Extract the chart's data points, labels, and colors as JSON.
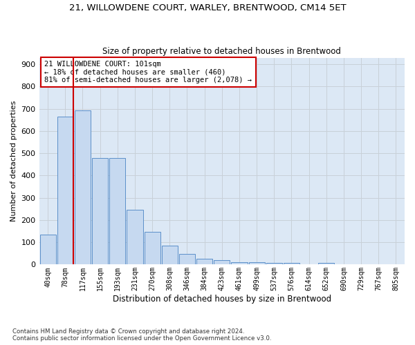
{
  "title": "21, WILLOWDENE COURT, WARLEY, BRENTWOOD, CM14 5ET",
  "subtitle": "Size of property relative to detached houses in Brentwood",
  "xlabel": "Distribution of detached houses by size in Brentwood",
  "ylabel": "Number of detached properties",
  "categories": [
    "40sqm",
    "78sqm",
    "117sqm",
    "155sqm",
    "193sqm",
    "231sqm",
    "270sqm",
    "308sqm",
    "346sqm",
    "384sqm",
    "423sqm",
    "461sqm",
    "499sqm",
    "537sqm",
    "576sqm",
    "614sqm",
    "652sqm",
    "690sqm",
    "729sqm",
    "767sqm",
    "805sqm"
  ],
  "values": [
    135,
    665,
    693,
    480,
    478,
    245,
    147,
    85,
    48,
    25,
    20,
    10,
    10,
    6,
    6,
    0,
    8,
    0,
    0,
    0,
    0
  ],
  "bar_color": "#c6d9f0",
  "bar_edge_color": "#5b8fc9",
  "grid_color": "#c8d0d8",
  "bg_color": "#dce8f5",
  "vline_color": "#cc0000",
  "annotation_text": "21 WILLOWDENE COURT: 101sqm\n← 18% of detached houses are smaller (460)\n81% of semi-detached houses are larger (2,078) →",
  "annotation_box_color": "#cc0000",
  "footnote": "Contains HM Land Registry data © Crown copyright and database right 2024.\nContains public sector information licensed under the Open Government Licence v3.0.",
  "ylim": [
    0,
    930
  ],
  "yticks": [
    0,
    100,
    200,
    300,
    400,
    500,
    600,
    700,
    800,
    900
  ]
}
